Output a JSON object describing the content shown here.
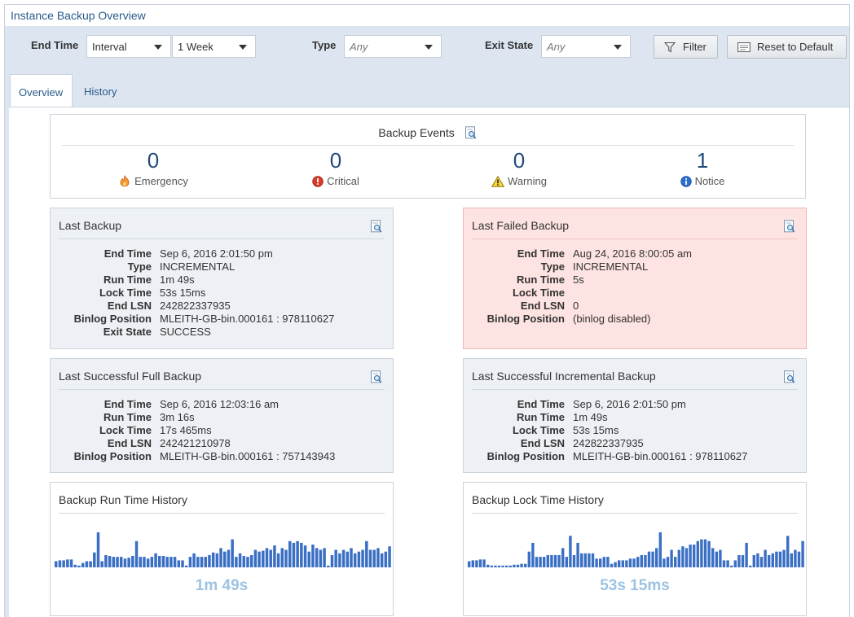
{
  "window": {
    "title": "Instance Backup Overview"
  },
  "toolbar": {
    "end_time_label": "End Time",
    "end_time_mode": "Interval",
    "end_time_range": "1 Week",
    "type_label": "Type",
    "type_placeholder": "Any",
    "exit_state_label": "Exit State",
    "exit_state_placeholder": "Any",
    "filter_button": "Filter",
    "reset_button": "Reset to Default"
  },
  "tabs": [
    {
      "label": "Overview",
      "active": true
    },
    {
      "label": "History",
      "active": false
    }
  ],
  "events": {
    "title": "Backup Events",
    "items": [
      {
        "count": "0",
        "label": "Emergency",
        "icon": "flame-icon"
      },
      {
        "count": "0",
        "label": "Critical",
        "icon": "critical-icon"
      },
      {
        "count": "0",
        "label": "Warning",
        "icon": "warning-icon"
      },
      {
        "count": "1",
        "label": "Notice",
        "icon": "info-icon"
      }
    ]
  },
  "last_backup": {
    "title": "Last Backup",
    "rows": [
      {
        "k": "End Time",
        "v": "Sep 6, 2016 2:01:50 pm"
      },
      {
        "k": "Type",
        "v": "INCREMENTAL"
      },
      {
        "k": "Run Time",
        "v": "1m 49s"
      },
      {
        "k": "Lock Time",
        "v": "53s 15ms"
      },
      {
        "k": "End LSN",
        "v": "242822337935"
      },
      {
        "k": "Binlog Position",
        "v": "MLEITH-GB-bin.000161 : 978110627"
      },
      {
        "k": "Exit State",
        "v": "SUCCESS"
      }
    ]
  },
  "last_failed_backup": {
    "title": "Last Failed Backup",
    "rows": [
      {
        "k": "End Time",
        "v": "Aug 24, 2016 8:00:05 am"
      },
      {
        "k": "Type",
        "v": "INCREMENTAL"
      },
      {
        "k": "Run Time",
        "v": "5s"
      },
      {
        "k": "Lock Time",
        "v": ""
      },
      {
        "k": "End LSN",
        "v": "0"
      },
      {
        "k": "Binlog Position",
        "v": "(binlog disabled)"
      }
    ]
  },
  "last_full_backup": {
    "title": "Last Successful Full Backup",
    "rows": [
      {
        "k": "End Time",
        "v": "Sep 6, 2016 12:03:16 am"
      },
      {
        "k": "Run Time",
        "v": "3m 16s"
      },
      {
        "k": "Lock Time",
        "v": "17s 465ms"
      },
      {
        "k": "End LSN",
        "v": "242421210978"
      },
      {
        "k": "Binlog Position",
        "v": "MLEITH-GB-bin.000161 : 757143943"
      }
    ]
  },
  "last_incremental_backup": {
    "title": "Last Successful Incremental Backup",
    "rows": [
      {
        "k": "End Time",
        "v": "Sep 6, 2016 2:01:50 pm"
      },
      {
        "k": "Run Time",
        "v": "1m 49s"
      },
      {
        "k": "Lock Time",
        "v": "53s 15ms"
      },
      {
        "k": "End LSN",
        "v": "242822337935"
      },
      {
        "k": "Binlog Position",
        "v": "MLEITH-GB-bin.000161 : 978110627"
      }
    ]
  },
  "run_time_history": {
    "title": "Backup Run Time History",
    "current": "1m 49s",
    "bar_color": "#3a6fc4",
    "values": [
      7,
      8,
      8,
      9,
      9,
      3,
      2,
      5,
      7,
      7,
      17,
      40,
      7,
      14,
      13,
      12,
      12,
      12,
      10,
      11,
      13,
      30,
      12,
      12,
      10,
      12,
      16,
      13,
      13,
      12,
      12,
      12,
      8,
      8,
      2,
      12,
      16,
      12,
      12,
      12,
      14,
      17,
      16,
      22,
      18,
      20,
      32,
      12,
      16,
      13,
      12,
      14,
      20,
      18,
      19,
      22,
      20,
      25,
      16,
      22,
      20,
      30,
      28,
      30,
      28,
      25,
      18,
      26,
      22,
      20,
      22,
      2,
      14,
      20,
      16,
      20,
      18,
      22,
      16,
      18,
      20,
      30,
      20,
      20,
      22,
      16,
      18,
      24
    ]
  },
  "lock_time_history": {
    "title": "Backup Lock Time History",
    "current": "53s 15ms",
    "bar_color": "#3a6fc4",
    "values": [
      7,
      8,
      8,
      9,
      9,
      3,
      2,
      2,
      2,
      2,
      2,
      2,
      3,
      3,
      4,
      4,
      18,
      28,
      12,
      12,
      12,
      14,
      14,
      14,
      14,
      22,
      12,
      36,
      14,
      28,
      16,
      16,
      16,
      16,
      10,
      10,
      12,
      12,
      4,
      6,
      8,
      8,
      8,
      10,
      10,
      12,
      14,
      14,
      18,
      18,
      22,
      40,
      10,
      12,
      20,
      12,
      20,
      24,
      22,
      26,
      26,
      30,
      32,
      32,
      30,
      22,
      18,
      20,
      8,
      8,
      2,
      8,
      14,
      14,
      28,
      2,
      14,
      16,
      12,
      20,
      14,
      16,
      18,
      18,
      20,
      36,
      16,
      20,
      18,
      30
    ]
  }
}
